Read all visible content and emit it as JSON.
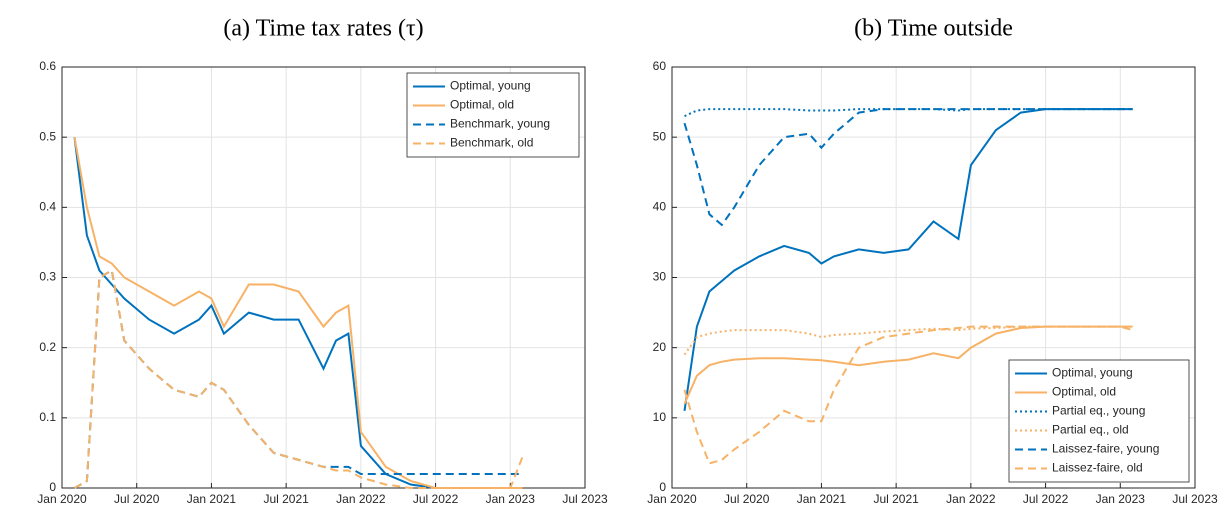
{
  "chart_data": [
    {
      "type": "line",
      "title": "(a) Time tax rates (τ)",
      "x": [
        "2020-02",
        "2020-03",
        "2020-04",
        "2020-05",
        "2020-06",
        "2020-08",
        "2020-10",
        "2020-12",
        "2021-01",
        "2021-02",
        "2021-04",
        "2021-06",
        "2021-08",
        "2021-10",
        "2021-11",
        "2021-12",
        "2022-01",
        "2022-03",
        "2022-05",
        "2022-07",
        "2022-09",
        "2022-11",
        "2023-01",
        "2023-02"
      ],
      "series": [
        {
          "name": "Optimal, young",
          "color": "#0072bd",
          "style": "solid",
          "values": [
            0.5,
            0.36,
            0.31,
            0.29,
            0.27,
            0.24,
            0.22,
            0.24,
            0.26,
            0.22,
            0.25,
            0.24,
            0.24,
            0.17,
            0.21,
            0.22,
            0.06,
            0.02,
            0.005,
            0,
            0,
            0,
            0,
            0
          ]
        },
        {
          "name": "Optimal, old",
          "color": "#f7b266",
          "style": "solid",
          "values": [
            0.5,
            0.4,
            0.33,
            0.32,
            0.3,
            0.28,
            0.26,
            0.28,
            0.27,
            0.23,
            0.29,
            0.29,
            0.28,
            0.23,
            0.25,
            0.26,
            0.08,
            0.03,
            0.01,
            0,
            0,
            0,
            0,
            0
          ]
        },
        {
          "name": "Benchmark, young",
          "color": "#0072bd",
          "style": "dashed",
          "values": [
            0,
            0.01,
            0.3,
            0.31,
            0.21,
            0.17,
            0.14,
            0.13,
            0.15,
            0.14,
            0.09,
            0.05,
            0.04,
            0.03,
            0.03,
            0.03,
            0.02,
            0.02,
            0.02,
            0.02,
            0.02,
            0.02,
            0.02,
            0.02
          ]
        },
        {
          "name": "Benchmark, old",
          "color": "#f7b266",
          "style": "dashed",
          "values": [
            0,
            0.01,
            0.3,
            0.31,
            0.21,
            0.17,
            0.14,
            0.13,
            0.15,
            0.14,
            0.09,
            0.05,
            0.04,
            0.03,
            0.025,
            0.025,
            0.015,
            0.005,
            0,
            0,
            0,
            0,
            0,
            0.045
          ]
        }
      ],
      "xlim": [
        "2020-01",
        "2023-07"
      ],
      "xticks": [
        {
          "value": "2020-01",
          "label": "Jan 2020"
        },
        {
          "value": "2020-07",
          "label": "Jul 2020"
        },
        {
          "value": "2021-01",
          "label": "Jan 2021"
        },
        {
          "value": "2021-07",
          "label": "Jul 2021"
        },
        {
          "value": "2022-01",
          "label": "Jan 2022"
        },
        {
          "value": "2022-07",
          "label": "Jul 2022"
        },
        {
          "value": "2023-01",
          "label": "Jan 2023"
        },
        {
          "value": "2023-07",
          "label": "Jul 2023"
        }
      ],
      "ylim": [
        0,
        0.6
      ],
      "yticks": [
        0,
        0.1,
        0.2,
        0.3,
        0.4,
        0.5,
        0.6
      ],
      "grid": true,
      "legend": "upper right"
    },
    {
      "type": "line",
      "title": "(b) Time outside",
      "x": [
        "2020-02",
        "2020-03",
        "2020-04",
        "2020-05",
        "2020-06",
        "2020-08",
        "2020-10",
        "2020-12",
        "2021-01",
        "2021-02",
        "2021-04",
        "2021-06",
        "2021-08",
        "2021-10",
        "2021-12",
        "2022-01",
        "2022-03",
        "2022-05",
        "2022-07",
        "2022-09",
        "2022-11",
        "2023-01",
        "2023-02"
      ],
      "series": [
        {
          "name": "Optimal, young",
          "color": "#0072bd",
          "style": "solid",
          "values": [
            11,
            23,
            28,
            29.5,
            31,
            33,
            34.5,
            33.5,
            32,
            33,
            34,
            33.5,
            34,
            38,
            35.5,
            46,
            51,
            53.5,
            54,
            54,
            54,
            54,
            54
          ]
        },
        {
          "name": "Optimal, old",
          "color": "#f7b266",
          "style": "solid",
          "values": [
            12,
            16,
            17.5,
            18,
            18.3,
            18.5,
            18.5,
            18.3,
            18.2,
            18,
            17.5,
            18,
            18.3,
            19.2,
            18.5,
            20,
            22,
            22.8,
            23,
            23,
            23,
            23,
            23
          ]
        },
        {
          "name": "Partial eq., young",
          "color": "#0072bd",
          "style": "dotted",
          "values": [
            53,
            53.8,
            54,
            54,
            54,
            54,
            54,
            53.8,
            53.8,
            53.8,
            54,
            54,
            54,
            54,
            53.8,
            54,
            54,
            54,
            54,
            54,
            54,
            54,
            54
          ]
        },
        {
          "name": "Partial eq., old",
          "color": "#f7b266",
          "style": "dotted",
          "values": [
            19,
            21.5,
            22,
            22.3,
            22.5,
            22.5,
            22.5,
            22,
            21.5,
            21.8,
            22,
            22.3,
            22.5,
            22.7,
            22.5,
            22.7,
            22.8,
            23,
            23,
            23,
            23,
            23,
            23
          ]
        },
        {
          "name": "Laissez-faire, young",
          "color": "#0072bd",
          "style": "dashed",
          "values": [
            52,
            46,
            39,
            37.5,
            40,
            46,
            50,
            50.5,
            48.5,
            50.5,
            53.5,
            54,
            54,
            54,
            54,
            54,
            54,
            54,
            54,
            54,
            54,
            54,
            54
          ]
        },
        {
          "name": "Laissez-faire, old",
          "color": "#f7b266",
          "style": "dashed",
          "values": [
            14,
            8,
            3.5,
            4,
            5.5,
            8,
            11,
            9.5,
            9.5,
            14,
            20,
            21.5,
            22,
            22.5,
            22.8,
            23,
            23,
            23,
            23,
            23,
            23,
            23,
            22.5
          ]
        }
      ],
      "xlim": [
        "2020-01",
        "2023-07"
      ],
      "xticks": [
        {
          "value": "2020-01",
          "label": "Jan 2020"
        },
        {
          "value": "2020-07",
          "label": "Jul 2020"
        },
        {
          "value": "2021-01",
          "label": "Jan 2021"
        },
        {
          "value": "2021-07",
          "label": "Jul 2021"
        },
        {
          "value": "2022-01",
          "label": "Jan 2022"
        },
        {
          "value": "2022-07",
          "label": "Jul 2022"
        },
        {
          "value": "2023-01",
          "label": "Jan 2023"
        },
        {
          "value": "2023-07",
          "label": "Jul 2023"
        }
      ],
      "ylim": [
        0,
        60
      ],
      "yticks": [
        0,
        10,
        20,
        30,
        40,
        50,
        60
      ],
      "grid": true,
      "legend": "lower right"
    }
  ]
}
